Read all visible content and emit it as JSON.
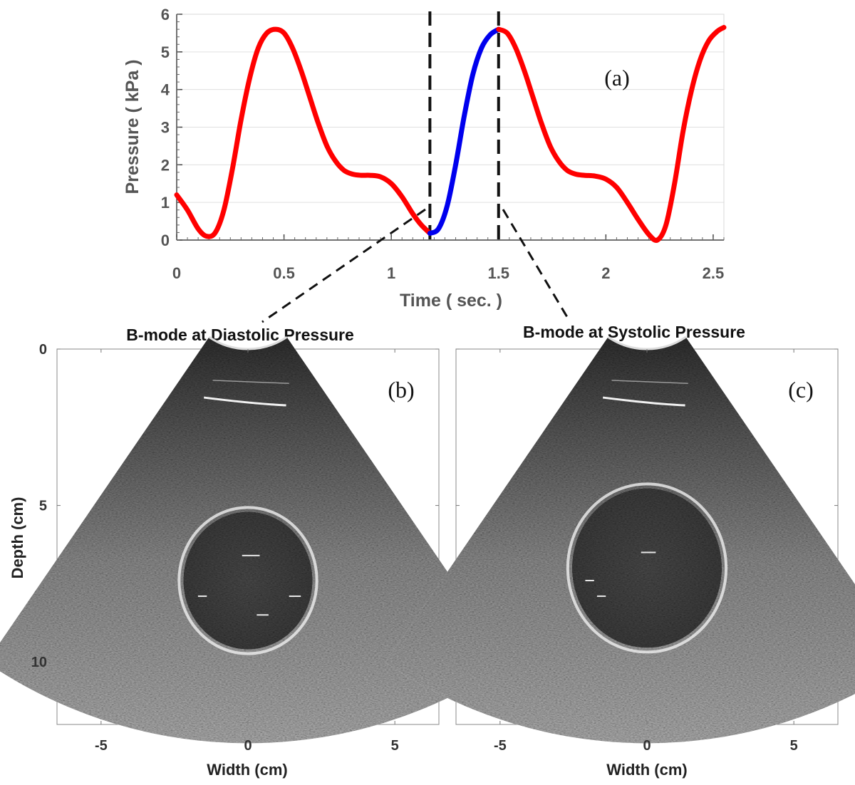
{
  "chart_data": [
    {
      "type": "line",
      "panel_label": "(a)",
      "xlabel": "Time ( sec. )",
      "ylabel": "Pressure ( kPa )",
      "xlim": [
        0,
        2.55
      ],
      "ylim": [
        0,
        6
      ],
      "xticks": [
        0,
        0.5,
        1,
        1.5,
        2,
        2.5
      ],
      "xtick_labels": [
        "0",
        "0.5",
        "1",
        "1.5",
        "2",
        "2.5"
      ],
      "yticks": [
        0,
        1,
        2,
        3,
        4,
        5,
        6
      ],
      "ytick_labels": [
        "0",
        "1",
        "2",
        "3",
        "4",
        "5",
        "6"
      ],
      "grid": true,
      "vlines": [
        1.18,
        1.5
      ],
      "series": [
        {
          "name": "pressure-red-1",
          "color": "#ff0000",
          "x": [
            0,
            0.05,
            0.1,
            0.14,
            0.18,
            0.22,
            0.26,
            0.3,
            0.34,
            0.38,
            0.42,
            0.46,
            0.5,
            0.54,
            0.58,
            0.62,
            0.66,
            0.7,
            0.74,
            0.78,
            0.82,
            0.86,
            0.9,
            0.95,
            1.0,
            1.05,
            1.1,
            1.14,
            1.18
          ],
          "values": [
            1.2,
            0.8,
            0.3,
            0.1,
            0.2,
            0.8,
            1.9,
            3.2,
            4.3,
            5.1,
            5.5,
            5.6,
            5.5,
            5.1,
            4.5,
            3.8,
            3.1,
            2.5,
            2.1,
            1.85,
            1.75,
            1.72,
            1.72,
            1.68,
            1.5,
            1.15,
            0.7,
            0.4,
            0.18
          ]
        },
        {
          "name": "pressure-blue",
          "color": "#0000ee",
          "x": [
            1.18,
            1.22,
            1.26,
            1.3,
            1.34,
            1.38,
            1.42,
            1.46,
            1.5
          ],
          "values": [
            0.18,
            0.3,
            0.9,
            2.0,
            3.3,
            4.4,
            5.1,
            5.45,
            5.6
          ]
        },
        {
          "name": "pressure-red-2",
          "color": "#ff0000",
          "x": [
            1.5,
            1.54,
            1.58,
            1.62,
            1.66,
            1.7,
            1.74,
            1.78,
            1.82,
            1.86,
            1.9,
            1.95,
            2.0,
            2.05,
            2.1,
            2.15,
            2.2,
            2.24,
            2.28,
            2.32,
            2.36,
            2.4,
            2.44,
            2.48,
            2.52,
            2.55
          ],
          "values": [
            5.6,
            5.5,
            5.1,
            4.5,
            3.8,
            3.1,
            2.5,
            2.1,
            1.85,
            1.75,
            1.72,
            1.7,
            1.62,
            1.4,
            1.0,
            0.55,
            0.15,
            0.0,
            0.4,
            1.5,
            2.9,
            4.0,
            4.8,
            5.3,
            5.55,
            5.65
          ]
        }
      ]
    },
    {
      "type": "image",
      "title": "B-mode at Diastolic Pressure",
      "panel_label": "(b)",
      "xlabel": "Width (cm)",
      "ylabel": "Depth (cm)",
      "xlim": [
        -6.5,
        6.5
      ],
      "ylim": [
        0,
        12
      ],
      "xticks": [
        -5,
        0,
        5
      ],
      "xtick_labels": [
        "-5",
        "0",
        "5"
      ],
      "yticks": [
        0,
        5,
        10
      ],
      "ytick_labels": [
        "0",
        "5",
        "10"
      ],
      "inclusion": {
        "center_x": 0,
        "center_depth": 7.4,
        "radius": 2.2
      }
    },
    {
      "type": "image",
      "title": "B-mode at Systolic Pressure",
      "panel_label": "(c)",
      "xlabel": "Width (cm)",
      "ylabel": "",
      "xlim": [
        -6.5,
        6.5
      ],
      "ylim": [
        0,
        12
      ],
      "xticks": [
        -5,
        0,
        5
      ],
      "xtick_labels": [
        "-5",
        "0",
        "5"
      ],
      "yticks": [
        0,
        5,
        10
      ],
      "ytick_labels": [
        "",
        "",
        ""
      ],
      "inclusion": {
        "center_x": 0,
        "center_depth": 7.0,
        "radius": 2.55
      }
    }
  ]
}
